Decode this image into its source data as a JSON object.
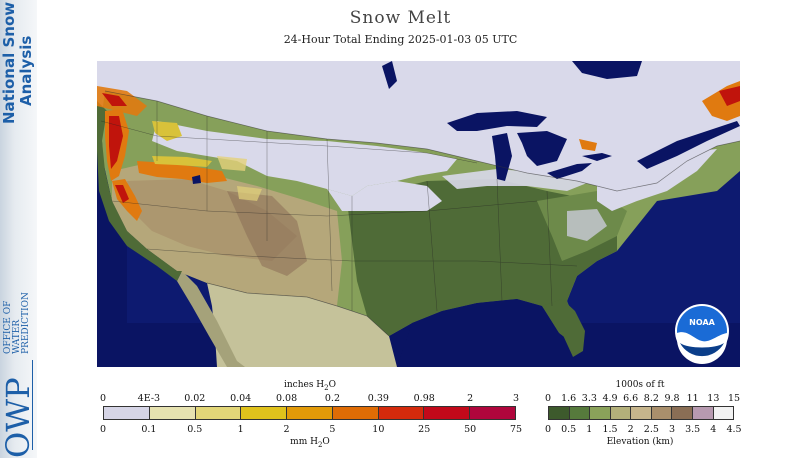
{
  "title": "Snow Melt",
  "subtitle": "24-Hour Total Ending 2025-01-03 05 UTC",
  "sidebar": {
    "product_line1": "National Snow",
    "product_line2": "Analysis",
    "agency_abbr": "OWP",
    "agency_line1": "OFFICE OF",
    "agency_line2": "WATER",
    "agency_line3": "PREDICTION"
  },
  "logo": {
    "text": "NOAA"
  },
  "colors": {
    "ocean": "#0a1463",
    "mexico_land": "#c5c29a",
    "snow": "#d9d9ea",
    "low_green": "#4f6b37",
    "mid_green": "#86a05a",
    "tan": "#b5a77a",
    "melt_yellow": "#d8c23a",
    "melt_orange": "#e07a10",
    "melt_red": "#c0140c",
    "lake_water": "#0a1463"
  },
  "melt_legend": {
    "top_label": "inches H2O",
    "bottom_label": "mm H2O",
    "inch_ticks": [
      "0",
      "4E-3",
      "0.02",
      "0.04",
      "0.08",
      "0.2",
      "0.39",
      "0.98",
      "2",
      "3"
    ],
    "mm_ticks": [
      "0",
      "0.1",
      "0.5",
      "1",
      "2",
      "5",
      "10",
      "25",
      "50",
      "75"
    ],
    "colors": [
      "#d6d5e6",
      "#e6e2b0",
      "#e2d678",
      "#e0c21c",
      "#e29a08",
      "#df6c05",
      "#d42a0c",
      "#c2091a",
      "#b0063c"
    ]
  },
  "elev_legend": {
    "top_label": "1000s of ft",
    "bottom_label": "Elevation (km)",
    "ft_ticks": [
      "0",
      "1.6",
      "3.3",
      "4.9",
      "6.6",
      "8.2",
      "9.8",
      "11",
      "13",
      "15"
    ],
    "km_ticks": [
      "0",
      "0.5",
      "1",
      "1.5",
      "2",
      "2.5",
      "3",
      "3.5",
      "4",
      "4.5"
    ],
    "colors": [
      "#3d5a2c",
      "#567a3c",
      "#8aa25a",
      "#b3b07a",
      "#c6b58c",
      "#a98f6c",
      "#8a6e55",
      "#b79ab0",
      "#f2f2f2"
    ]
  }
}
